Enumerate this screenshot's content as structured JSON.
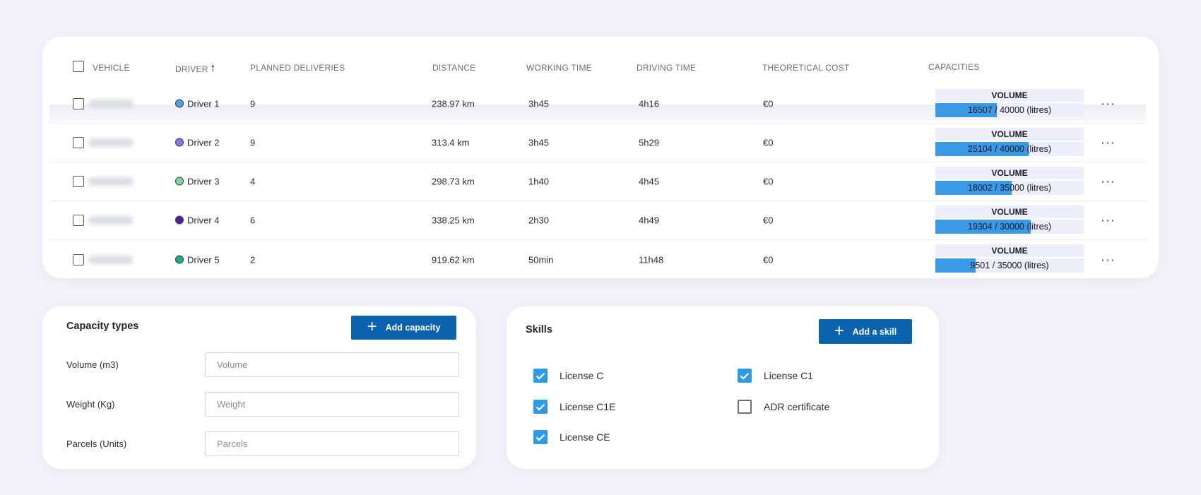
{
  "table": {
    "headers": {
      "vehicle": "VEHICLE",
      "driver": "DRIVER",
      "driver_sort_icon": "arrow-up-icon",
      "planned": "PLANNED DELIVERIES",
      "distance": "DISTANCE",
      "working": "WORKING TIME",
      "driving": "DRIVING TIME",
      "cost": "THEORETICAL COST",
      "capacities": "CAPACITIES"
    },
    "rows": [
      {
        "driver": "Driver 1",
        "driver_color": "#4aa3e8",
        "planned": "9",
        "distance": "238.97 km",
        "working": "3h45",
        "driving": "4h16",
        "cost": "€0",
        "capacity_label": "VOLUME",
        "capacity_text": "16507 / 40000 (litres)",
        "capacity_fraction": 0.4127
      },
      {
        "driver": "Driver 2",
        "driver_color": "#7c7fd9",
        "planned": "9",
        "distance": "313.4 km",
        "working": "3h45",
        "driving": "5h29",
        "cost": "€0",
        "capacity_label": "VOLUME",
        "capacity_text": "25104 / 40000 (litres)",
        "capacity_fraction": 0.6276
      },
      {
        "driver": "Driver 3",
        "driver_color": "#7fd69b",
        "planned": "4",
        "distance": "298.73 km",
        "working": "1h40",
        "driving": "4h45",
        "cost": "€0",
        "capacity_label": "VOLUME",
        "capacity_text": "18002 / 35000 (litres)",
        "capacity_fraction": 0.5143
      },
      {
        "driver": "Driver 4",
        "driver_color": "#4a2494",
        "planned": "6",
        "distance": "338.25 km",
        "working": "2h30",
        "driving": "4h49",
        "cost": "€0",
        "capacity_label": "VOLUME",
        "capacity_text": "19304 / 30000 (litres)",
        "capacity_fraction": 0.6435
      },
      {
        "driver": "Driver 5",
        "driver_color": "#1aab8a",
        "planned": "2",
        "distance": "919.62 km",
        "working": "50min",
        "driving": "11h48",
        "cost": "€0",
        "capacity_label": "VOLUME",
        "capacity_text": "9501 / 35000 (litres)",
        "capacity_fraction": 0.2715
      }
    ],
    "more_icon": "more-horizontal-icon",
    "more_glyph": "···"
  },
  "capacity_types": {
    "title": "Capacity types",
    "add_label": "Add capacity",
    "add_icon": "plus-icon",
    "fields": [
      {
        "label": "Volume (m3)",
        "placeholder": "Volume",
        "value": ""
      },
      {
        "label": "Weight (Kg)",
        "placeholder": "Weight",
        "value": ""
      },
      {
        "label": "Parcels (Units)",
        "placeholder": "Parcels",
        "value": ""
      }
    ]
  },
  "skills": {
    "title": "Skills",
    "add_label": "Add a skill",
    "add_icon": "plus-icon",
    "items": [
      {
        "label": "License C",
        "checked": true
      },
      {
        "label": "License C1",
        "checked": true
      },
      {
        "label": "License C1E",
        "checked": true
      },
      {
        "label": "ADR certificate",
        "checked": false
      },
      {
        "label": "License CE",
        "checked": true
      }
    ]
  },
  "colors": {
    "primary_button": "#0a63ac",
    "checkbox_checked": "#2e9be8",
    "capacity_fill": "#3a9ae6",
    "page_background": "#f3f2f9"
  }
}
